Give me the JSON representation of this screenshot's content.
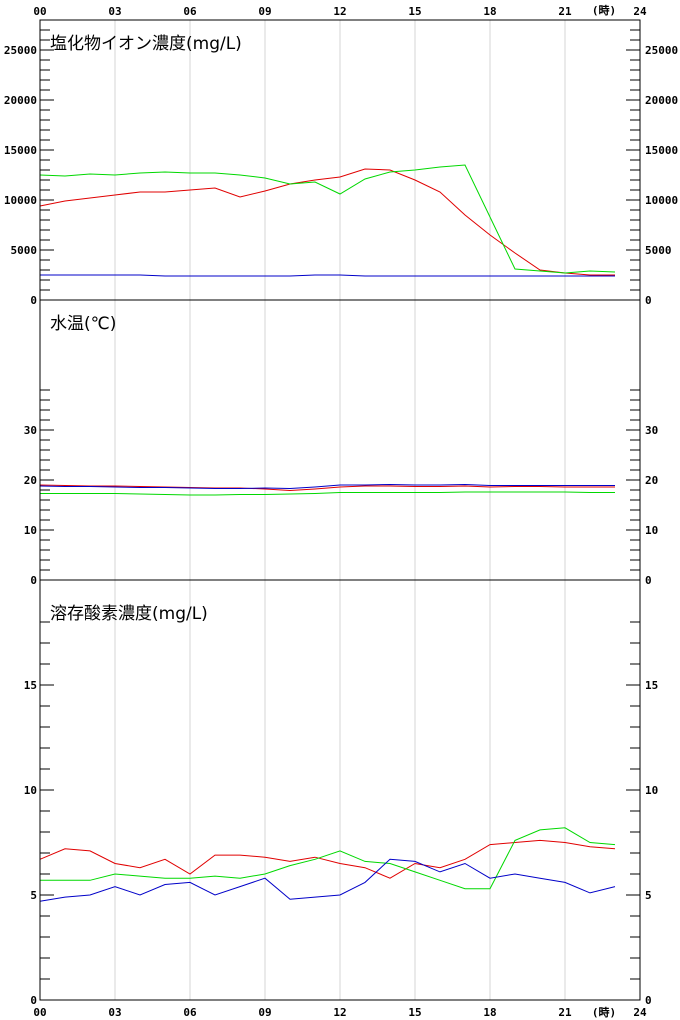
{
  "chart_data": {
    "type": "line",
    "time_axis": {
      "tick_labels": [
        "00",
        "03",
        "06",
        "09",
        "12",
        "15",
        "18",
        "21",
        "24"
      ],
      "unit_label": "(時)",
      "range": [
        0,
        24
      ]
    },
    "series_colors": [
      "#e00000",
      "#00d800",
      "#0000c8"
    ],
    "panels": [
      {
        "title": "塩化物イオン濃度(mg/L)",
        "ylim": [
          0,
          28000
        ],
        "y_tick_labels": [
          "0",
          "5000",
          "10000",
          "15000",
          "20000",
          "25000"
        ],
        "y_tick_values": [
          0,
          5000,
          10000,
          15000,
          20000,
          25000
        ],
        "minor_step": 1000,
        "series": [
          {
            "color": "#e00000",
            "x": [
              0,
              1,
              2,
              3,
              4,
              5,
              6,
              7,
              8,
              9,
              10,
              11,
              12,
              13,
              14,
              15,
              16,
              17,
              18,
              19,
              20,
              21,
              22,
              23
            ],
            "values": [
              9400,
              9900,
              10200,
              10500,
              10800,
              10800,
              11000,
              11200,
              10300,
              10900,
              11600,
              12000,
              12300,
              13100,
              13000,
              12000,
              10800,
              8500,
              6500,
              4700,
              3000,
              2700,
              2500,
              2500
            ]
          },
          {
            "color": "#00d800",
            "x": [
              0,
              1,
              2,
              3,
              4,
              5,
              6,
              7,
              8,
              9,
              10,
              11,
              12,
              13,
              14,
              15,
              16,
              17,
              18,
              19,
              20,
              21,
              22,
              23
            ],
            "values": [
              12500,
              12400,
              12600,
              12500,
              12700,
              12800,
              12700,
              12700,
              12500,
              12200,
              11600,
              11800,
              10600,
              12100,
              12800,
              13000,
              13300,
              13500,
              8300,
              3100,
              2900,
              2700,
              2900,
              2800
            ]
          },
          {
            "color": "#0000c8",
            "x": [
              0,
              1,
              2,
              3,
              4,
              5,
              6,
              7,
              8,
              9,
              10,
              11,
              12,
              13,
              14,
              15,
              16,
              17,
              18,
              19,
              20,
              21,
              22,
              23
            ],
            "values": [
              2500,
              2500,
              2500,
              2500,
              2500,
              2400,
              2400,
              2400,
              2400,
              2400,
              2400,
              2500,
              2500,
              2400,
              2400,
              2400,
              2400,
              2400,
              2400,
              2400,
              2400,
              2400,
              2400,
              2400
            ]
          }
        ]
      },
      {
        "title": "水温(℃)",
        "ylim": [
          0,
          56
        ],
        "y_tick_labels": [
          "0",
          "10",
          "20",
          "30"
        ],
        "y_tick_values": [
          0,
          10,
          20,
          30
        ],
        "minor_step": 2,
        "minor_max": 38,
        "series": [
          {
            "color": "#e00000",
            "x": [
              0,
              1,
              2,
              3,
              4,
              5,
              6,
              7,
              8,
              9,
              10,
              11,
              12,
              13,
              14,
              15,
              16,
              17,
              18,
              19,
              20,
              21,
              22,
              23
            ],
            "values": [
              19.0,
              18.9,
              18.8,
              18.8,
              18.7,
              18.6,
              18.5,
              18.4,
              18.4,
              18.2,
              17.9,
              18.2,
              18.6,
              18.8,
              18.8,
              18.7,
              18.7,
              18.8,
              18.6,
              18.7,
              18.7,
              18.6,
              18.6,
              18.6
            ]
          },
          {
            "color": "#00d800",
            "x": [
              0,
              1,
              2,
              3,
              4,
              5,
              6,
              7,
              8,
              9,
              10,
              11,
              12,
              13,
              14,
              15,
              16,
              17,
              18,
              19,
              20,
              21,
              22,
              23
            ],
            "values": [
              17.3,
              17.3,
              17.3,
              17.3,
              17.2,
              17.1,
              17.0,
              17.0,
              17.1,
              17.1,
              17.2,
              17.3,
              17.5,
              17.5,
              17.5,
              17.5,
              17.5,
              17.6,
              17.6,
              17.6,
              17.6,
              17.6,
              17.5,
              17.5
            ]
          },
          {
            "color": "#0000c8",
            "x": [
              0,
              1,
              2,
              3,
              4,
              5,
              6,
              7,
              8,
              9,
              10,
              11,
              12,
              13,
              14,
              15,
              16,
              17,
              18,
              19,
              20,
              21,
              22,
              23
            ],
            "values": [
              18.8,
              18.7,
              18.7,
              18.6,
              18.5,
              18.5,
              18.4,
              18.3,
              18.3,
              18.4,
              18.3,
              18.6,
              19.0,
              19.0,
              19.1,
              19.0,
              19.0,
              19.1,
              18.9,
              18.9,
              18.9,
              18.9,
              18.9,
              18.9
            ]
          }
        ]
      },
      {
        "title": "溶存酸素濃度(mg/L)",
        "ylim": [
          0,
          20
        ],
        "y_tick_labels": [
          "0",
          "5",
          "10",
          "15"
        ],
        "y_tick_values": [
          0,
          5,
          10,
          15
        ],
        "minor_step": 1,
        "minor_max": 18,
        "series": [
          {
            "color": "#e00000",
            "x": [
              0,
              1,
              2,
              3,
              4,
              5,
              6,
              7,
              8,
              9,
              10,
              11,
              12,
              13,
              14,
              15,
              16,
              17,
              18,
              19,
              20,
              21,
              22,
              23
            ],
            "values": [
              6.7,
              7.2,
              7.1,
              6.5,
              6.3,
              6.7,
              6.0,
              6.9,
              6.9,
              6.8,
              6.6,
              6.8,
              6.5,
              6.3,
              5.8,
              6.5,
              6.3,
              6.7,
              7.4,
              7.5,
              7.6,
              7.5,
              7.3,
              7.2
            ]
          },
          {
            "color": "#00d800",
            "x": [
              0,
              1,
              2,
              3,
              4,
              5,
              6,
              7,
              8,
              9,
              10,
              11,
              12,
              13,
              14,
              15,
              16,
              17,
              18,
              19,
              20,
              21,
              22,
              23
            ],
            "values": [
              5.7,
              5.7,
              5.7,
              6.0,
              5.9,
              5.8,
              5.8,
              5.9,
              5.8,
              6.0,
              6.4,
              6.7,
              7.1,
              6.6,
              6.5,
              6.1,
              5.7,
              5.3,
              5.3,
              7.6,
              8.1,
              8.2,
              7.5,
              7.4
            ]
          },
          {
            "color": "#0000c8",
            "x": [
              0,
              1,
              2,
              3,
              4,
              5,
              6,
              7,
              8,
              9,
              10,
              11,
              12,
              13,
              14,
              15,
              16,
              17,
              18,
              19,
              20,
              21,
              22,
              23
            ],
            "values": [
              4.7,
              4.9,
              5.0,
              5.4,
              5.0,
              5.5,
              5.6,
              5.0,
              5.4,
              5.8,
              4.8,
              4.9,
              5.0,
              5.6,
              6.7,
              6.6,
              6.1,
              6.5,
              5.8,
              6.0,
              5.8,
              5.6,
              5.1,
              5.4
            ]
          }
        ]
      }
    ]
  }
}
